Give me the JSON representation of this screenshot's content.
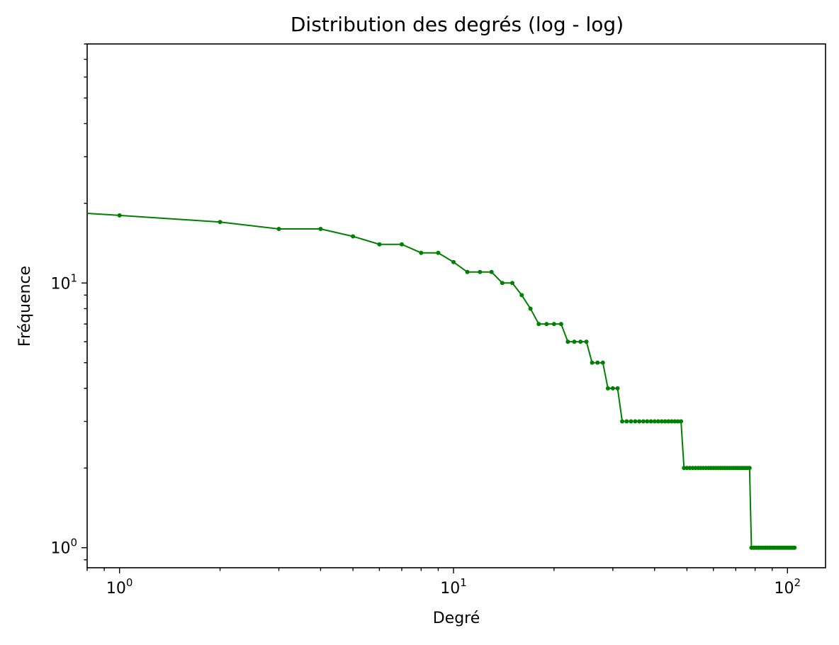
{
  "chart_data": {
    "type": "line",
    "title": "Distribution des degrés (log - log)",
    "xlabel": "Degré",
    "ylabel": "Fréquence",
    "xscale": "log",
    "yscale": "log",
    "xlim": [
      0.8,
      130
    ],
    "ylim": [
      0.84,
      80
    ],
    "grid": false,
    "color": "#008000",
    "x_ticks": [
      {
        "value": 1,
        "base": "10",
        "exp": "0"
      },
      {
        "value": 10,
        "base": "10",
        "exp": "1"
      },
      {
        "value": 100,
        "base": "10",
        "exp": "2"
      }
    ],
    "y_ticks": [
      {
        "value": 1,
        "base": "10",
        "exp": "0"
      },
      {
        "value": 10,
        "base": "10",
        "exp": "1"
      }
    ],
    "series": [
      {
        "x": [
          1,
          2,
          3,
          4,
          5,
          6,
          7,
          8,
          9,
          10,
          11,
          12,
          13,
          14,
          15,
          16,
          17,
          18,
          19,
          20,
          21,
          22,
          23,
          24,
          25,
          26,
          27,
          28,
          29,
          30,
          31,
          32,
          33,
          34,
          35,
          36,
          37,
          38,
          39,
          40,
          41,
          42,
          43,
          44,
          45,
          46,
          47,
          48,
          49,
          50,
          51,
          52,
          53,
          54,
          55,
          56,
          57,
          58,
          59,
          60,
          61,
          62,
          63,
          64,
          65,
          66,
          67,
          68,
          69,
          70,
          71,
          72,
          73,
          74,
          75,
          76,
          77,
          78,
          79,
          80,
          81,
          82,
          83,
          84,
          85,
          86,
          87,
          88,
          89,
          90,
          91,
          92,
          93,
          94,
          95,
          96,
          97,
          98,
          99,
          100,
          101,
          102,
          103,
          104,
          105
        ],
        "y": [
          18,
          17,
          16,
          16,
          15,
          14,
          14,
          13,
          13,
          12,
          11,
          11,
          11,
          10,
          10,
          9,
          8,
          7,
          7,
          7,
          7,
          6,
          6,
          6,
          6,
          5,
          5,
          5,
          4,
          4,
          4,
          3,
          3,
          3,
          3,
          3,
          3,
          3,
          3,
          3,
          3,
          3,
          3,
          3,
          3,
          3,
          3,
          3,
          2,
          2,
          2,
          2,
          2,
          2,
          2,
          2,
          2,
          2,
          2,
          2,
          2,
          2,
          2,
          2,
          2,
          2,
          2,
          2,
          2,
          2,
          2,
          2,
          2,
          2,
          2,
          2,
          2,
          1,
          1,
          1,
          1,
          1,
          1,
          1,
          1,
          1,
          1,
          1,
          1,
          1,
          1,
          1,
          1,
          1,
          1,
          1,
          1,
          1,
          1,
          1,
          1,
          1,
          1,
          1,
          1
        ]
      }
    ]
  }
}
